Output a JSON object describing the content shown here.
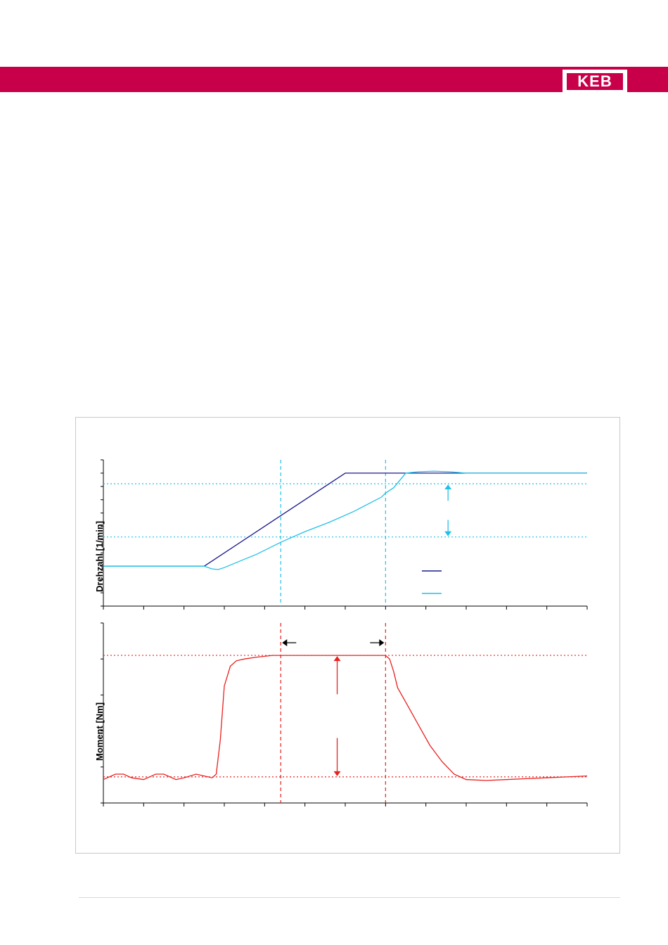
{
  "header": {
    "bar_color": "#c8004a",
    "logo_text": "KEB"
  },
  "chart_data": [
    {
      "type": "line",
      "ylabel": "Drehzahl [1/min]",
      "xlim": [
        0,
        12
      ],
      "ylim": [
        0,
        11
      ],
      "x_ticks": 13,
      "y_ticks": 11,
      "series": [
        {
          "color": "#1a1a8c",
          "x": [
            0,
            2.5,
            6.0,
            12.0
          ],
          "y": [
            3.0,
            3.0,
            10.0,
            10.0
          ]
        },
        {
          "color": "#22c0e8",
          "x": [
            0,
            2.5,
            2.7,
            2.85,
            3.0,
            3.4,
            3.8,
            4.4,
            5.0,
            5.6,
            6.2,
            6.9,
            7.0,
            7.2,
            7.5,
            7.8,
            8.2,
            8.6,
            9.0,
            10.0,
            12.0
          ],
          "y": [
            3.0,
            3.0,
            2.8,
            2.75,
            2.9,
            3.4,
            3.9,
            4.8,
            5.6,
            6.3,
            7.1,
            8.2,
            8.5,
            8.9,
            10.0,
            10.1,
            10.15,
            10.1,
            10.0,
            10.0,
            10.0
          ]
        }
      ],
      "reference_lines": {
        "color": "#22c0e8",
        "horizontal": [
          9.2,
          5.2
        ],
        "vertical": [
          4.4,
          7.0
        ]
      },
      "annotations": {
        "double_arrow_x": 8.55,
        "double_arrow_y": [
          9.2,
          5.2
        ],
        "arrow_color": "#22c0e8",
        "legend_swatches": [
          "#1a1a8c",
          "#22c0e8"
        ]
      }
    },
    {
      "type": "line",
      "ylabel": "Moment [Nm]",
      "xlim": [
        0,
        12
      ],
      "ylim": [
        0,
        10
      ],
      "x_ticks": 13,
      "y_ticks": 5,
      "series": [
        {
          "color": "#e8211f",
          "x": [
            0,
            0.3,
            0.5,
            0.7,
            1.0,
            1.3,
            1.5,
            1.8,
            2.0,
            2.3,
            2.5,
            2.7,
            2.8,
            2.9,
            3.0,
            3.15,
            3.3,
            3.5,
            3.8,
            4.2,
            5.0,
            6.0,
            7.0,
            7.1,
            7.2,
            7.3,
            7.5,
            7.8,
            8.1,
            8.4,
            8.7,
            9.0,
            9.5,
            10.0,
            10.5,
            11.0,
            11.5,
            12.0
          ],
          "y": [
            1.3,
            1.6,
            1.6,
            1.4,
            1.3,
            1.6,
            1.6,
            1.3,
            1.4,
            1.6,
            1.5,
            1.4,
            1.6,
            3.5,
            6.5,
            7.6,
            7.9,
            8.0,
            8.1,
            8.2,
            8.2,
            8.2,
            8.2,
            8.0,
            7.3,
            6.4,
            5.6,
            4.4,
            3.2,
            2.3,
            1.6,
            1.3,
            1.25,
            1.3,
            1.35,
            1.4,
            1.45,
            1.5
          ]
        }
      ],
      "reference_lines": {
        "color": "#e8211f",
        "horizontal": [
          8.2,
          1.45
        ],
        "vertical": [
          4.4,
          7.0
        ]
      },
      "annotations": {
        "double_arrow_x": 5.8,
        "double_arrow_y": [
          8.2,
          1.45
        ],
        "arrow_color": "#e8211f",
        "interval_arrows_y": 8.9,
        "interval_arrow_color": "#000000"
      }
    }
  ]
}
